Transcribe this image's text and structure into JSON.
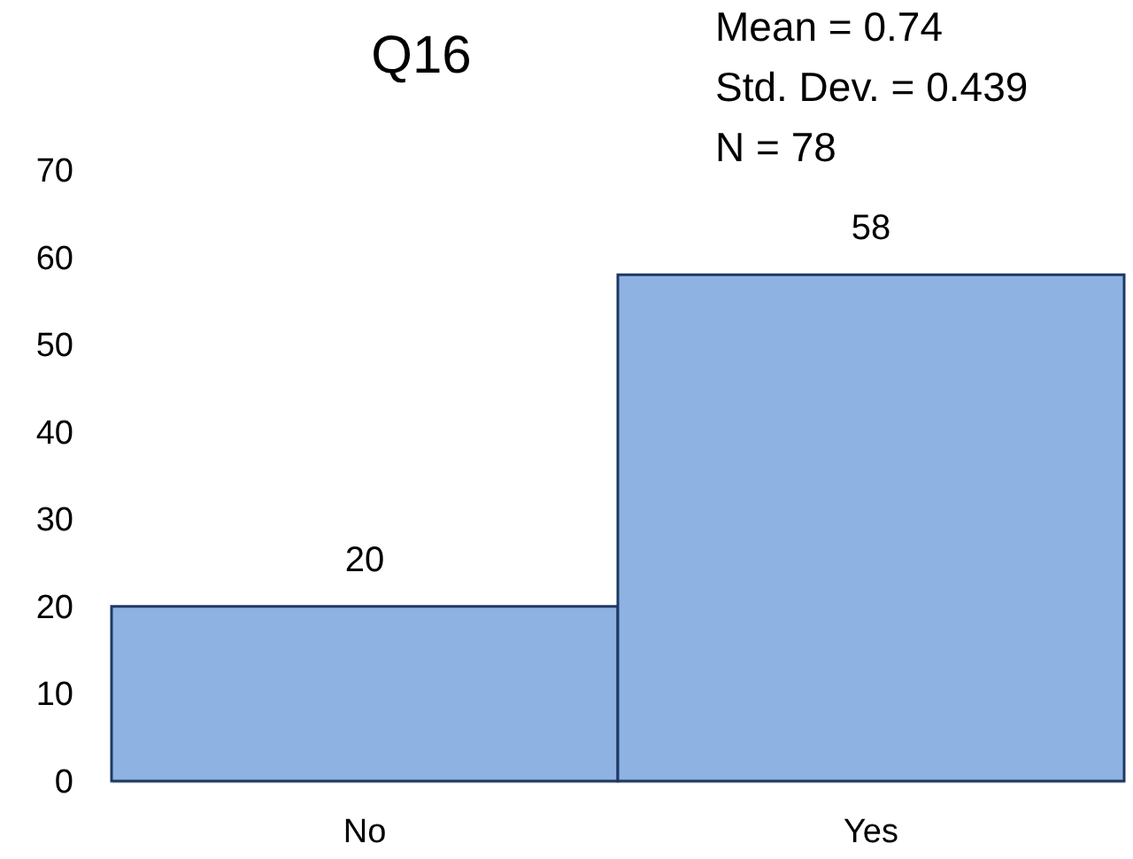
{
  "chart_data": {
    "type": "bar",
    "title": "Q16",
    "categories": [
      "No",
      "Yes"
    ],
    "values": [
      20,
      58
    ],
    "color": "#8eb3e2",
    "ylim": [
      0,
      70
    ],
    "yticks": [
      0,
      10,
      20,
      30,
      40,
      50,
      60,
      70
    ],
    "data_labels": true,
    "annotations": [
      "Mean = 0.74",
      "Std. Dev. = 0.439",
      "N = 78"
    ]
  }
}
